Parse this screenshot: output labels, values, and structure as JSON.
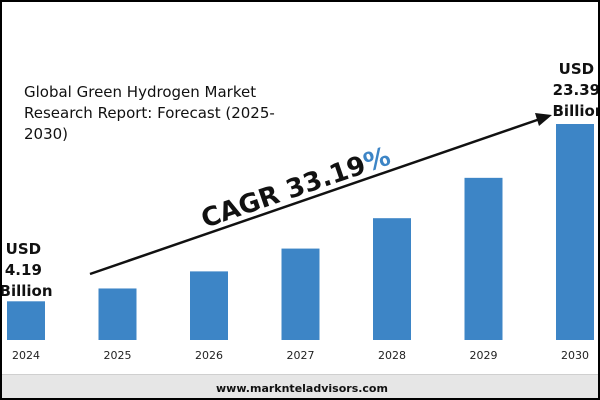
{
  "chart_data": {
    "type": "bar",
    "title": "Global Green Hydrogen Market Research Report: Forecast (2025-2030)",
    "categories": [
      "2024",
      "2025",
      "2026",
      "2027",
      "2028",
      "2029",
      "2030"
    ],
    "values": [
      4.19,
      5.58,
      7.43,
      9.9,
      13.19,
      17.56,
      23.39
    ],
    "start_label": [
      "USD",
      "4.19",
      "Billion"
    ],
    "end_label": [
      "USD",
      "23.39",
      "Billion"
    ],
    "annotation": {
      "text": "CAGR 33.19",
      "symbol": "%"
    },
    "ylim": [
      0,
      25
    ],
    "grid": false,
    "legend": "none",
    "bar_color": "#3d85c6",
    "accent_color": "#3d85c6"
  },
  "footer": {
    "url": "www.marknteladvisors.com"
  }
}
